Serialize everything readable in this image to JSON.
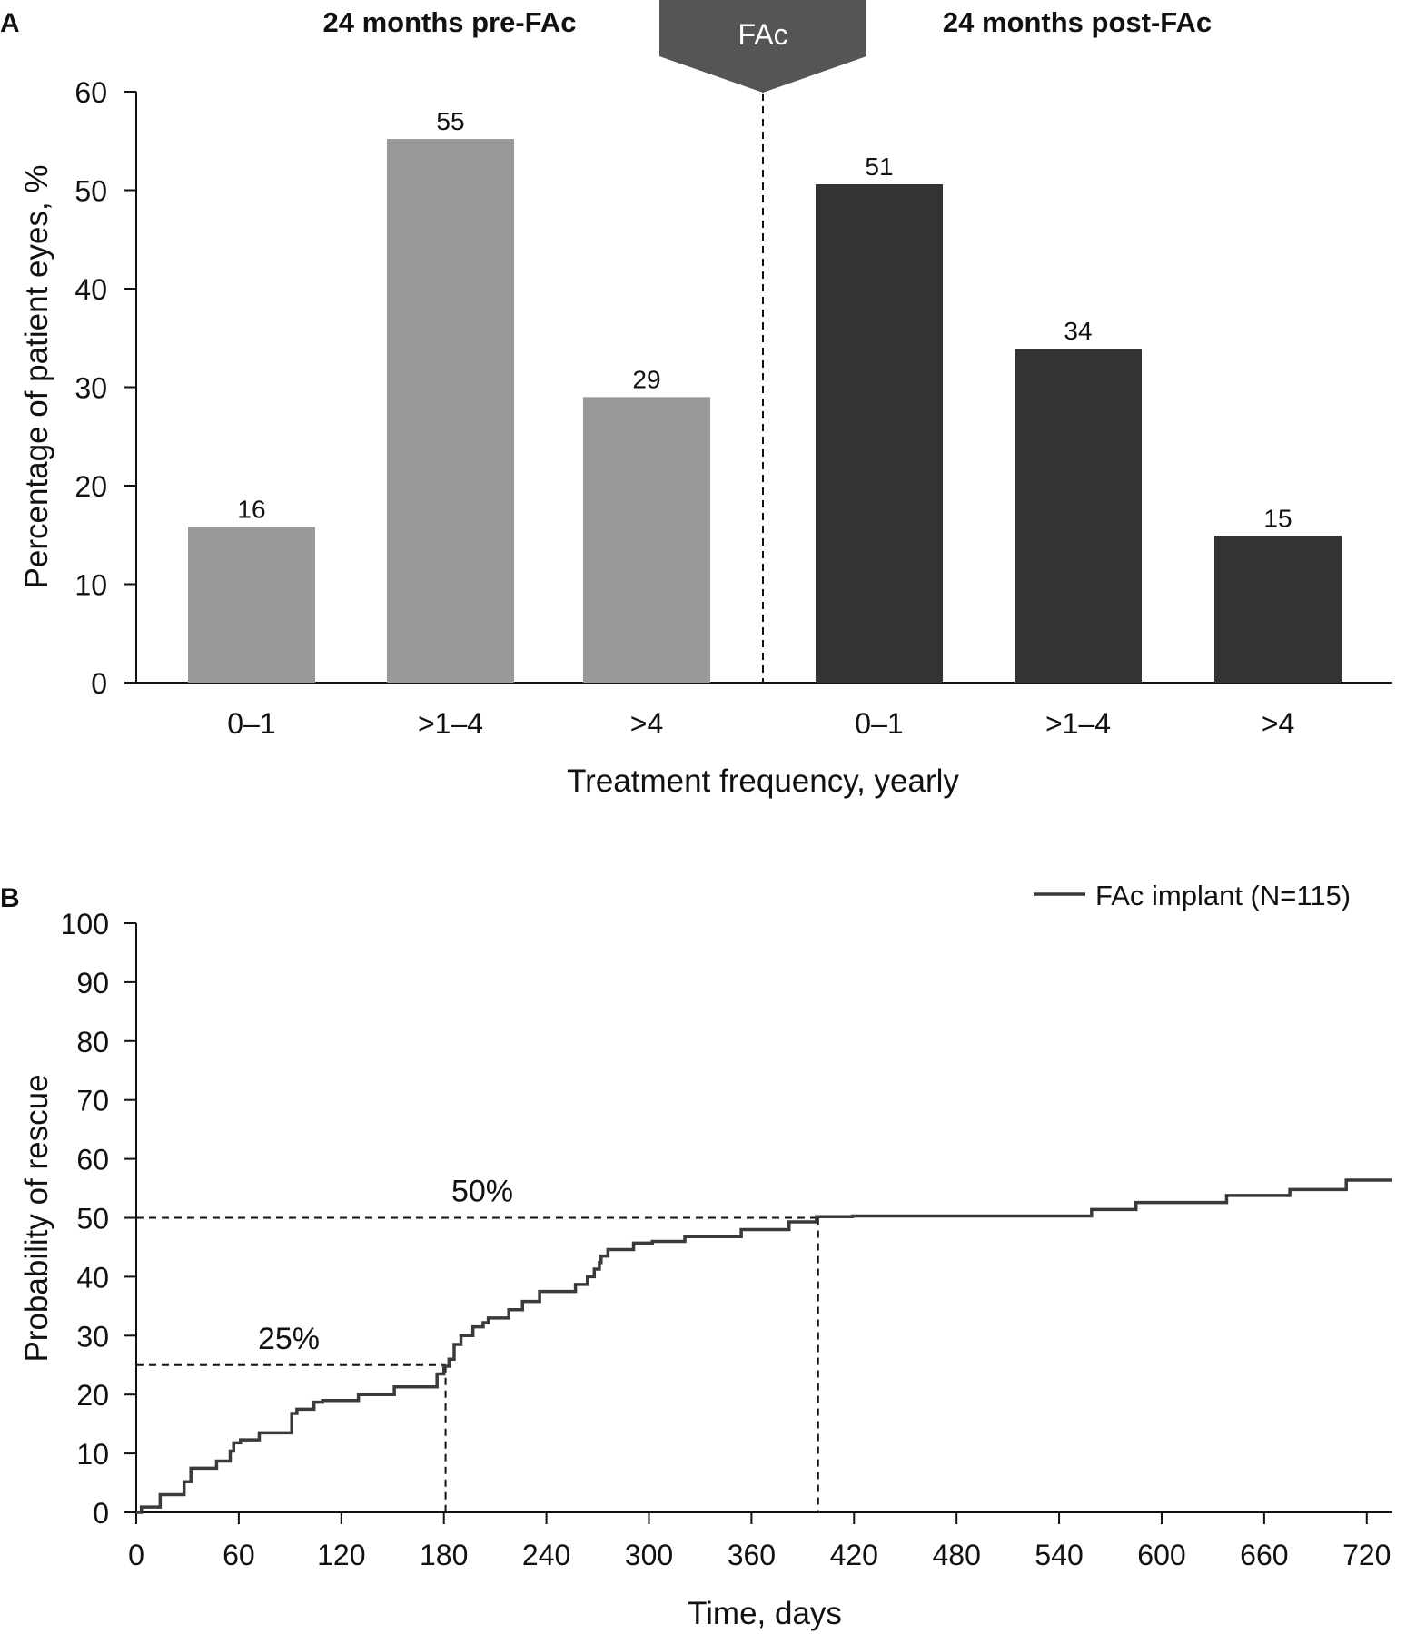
{
  "colors": {
    "pre_bar": "#999999",
    "post_bar": "#333333",
    "banner": "#555555",
    "line": "#3a3a3a",
    "axis": "#111111"
  },
  "chart_data": [
    {
      "panel": "A",
      "type": "bar",
      "groups": [
        {
          "title": "24 months pre-FAc",
          "categories": [
            "0–1",
            ">1–4",
            ">4"
          ],
          "values": [
            16,
            55,
            29
          ],
          "labels": [
            "16",
            "55",
            "29"
          ],
          "color": "#999999"
        },
        {
          "title": "24 months post-FAc",
          "categories": [
            "0–1",
            ">1–4",
            ">4"
          ],
          "values": [
            51,
            34,
            15
          ],
          "labels": [
            "51",
            "34",
            "15"
          ],
          "color": "#333333"
        }
      ],
      "plotted_values": [
        15.8,
        55.2,
        29.0,
        50.6,
        33.9,
        14.9
      ],
      "divider_label": "FAc",
      "xlabel": "Treatment frequency, yearly",
      "ylabel": "Percentage of patient eyes, %",
      "ylim": [
        0,
        60
      ],
      "yticks": [
        0,
        10,
        20,
        30,
        40,
        50,
        60
      ],
      "grid": false
    },
    {
      "panel": "B",
      "type": "line",
      "xlabel": "Time, days",
      "ylabel": "Probability of rescue",
      "xlim": [
        0,
        735
      ],
      "ylim": [
        0,
        100
      ],
      "xticks": [
        0,
        60,
        120,
        180,
        240,
        300,
        360,
        420,
        480,
        540,
        600,
        660,
        720
      ],
      "yticks": [
        0,
        10,
        20,
        30,
        40,
        50,
        60,
        70,
        80,
        90,
        100
      ],
      "grid": false,
      "legend": {
        "position": "top-right",
        "entries": [
          "FAc implant (N=115)"
        ]
      },
      "annotations": [
        {
          "text": "25%",
          "y": 25,
          "x": 181
        },
        {
          "text": "50%",
          "y": 50,
          "x": 399
        }
      ],
      "series": [
        {
          "name": "FAc implant (N=115)",
          "step": true,
          "x": [
            0,
            3,
            14,
            28,
            32,
            47,
            55,
            57,
            61,
            72,
            91,
            94,
            104,
            109,
            130,
            151,
            170,
            176,
            180,
            183,
            186,
            190,
            197,
            203,
            206,
            213,
            218,
            226,
            236,
            240,
            257,
            264,
            268,
            271,
            272,
            276,
            283,
            291,
            302,
            321,
            354,
            382,
            398,
            419,
            559,
            585,
            616,
            638,
            675,
            708,
            735
          ],
          "y": [
            0,
            0.9,
            3.0,
            5.2,
            7.5,
            8.7,
            10.4,
            11.8,
            12.3,
            13.5,
            16.8,
            17.5,
            18.7,
            19.0,
            20.0,
            21.3,
            21.3,
            23.5,
            24.8,
            26.0,
            28.5,
            30.0,
            31.5,
            32.2,
            33.0,
            33.0,
            34.4,
            35.8,
            37.5,
            37.5,
            38.7,
            40.0,
            41.3,
            42.4,
            43.5,
            44.6,
            44.6,
            45.7,
            46.0,
            46.8,
            48.0,
            49.3,
            50.2,
            50.3,
            51.4,
            52.6,
            52.6,
            53.8,
            54.8,
            56.4,
            56.4
          ]
        }
      ]
    }
  ]
}
